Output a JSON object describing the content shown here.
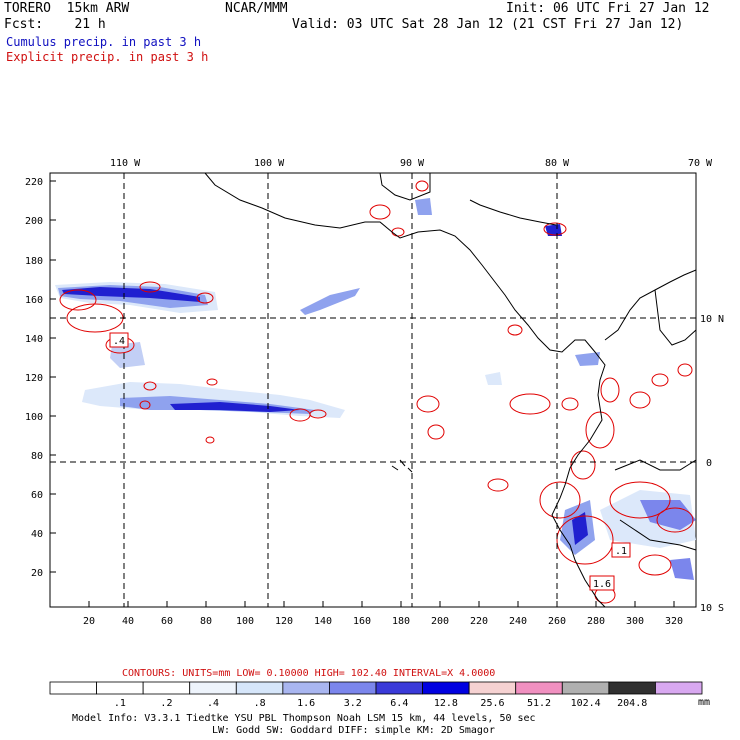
{
  "header": {
    "model": "TORERO  15km ARW",
    "org": "NCAR/MMM",
    "init": "Init: 06 UTC Fri 27 Jan 12",
    "fcst": "Fcst:    21 h",
    "valid": "Valid: 03 UTC Sat 28 Jan 12 (21 CST Fri 27 Jan 12)",
    "field1": "Cumulus precip. in past 3 h",
    "field2": "Explicit precip. in past 3 h"
  },
  "colors": {
    "cumulus_title": "#1010c0",
    "explicit_title": "#d01010",
    "contour": "#e00000",
    "shade_light": "#dce8fa",
    "shade_mid": "#8fa2ee",
    "shade_dark": "#2020d0",
    "grid": "#000000"
  },
  "axes": {
    "lon_labels": [
      "110 W",
      "100 W",
      "90 W",
      "80 W",
      "70 W"
    ],
    "lat_labels": [
      "10 N",
      "0",
      "10 S"
    ],
    "x_ticks": [
      "20",
      "40",
      "60",
      "80",
      "100",
      "120",
      "140",
      "160",
      "180",
      "200",
      "220",
      "240",
      "260",
      "280",
      "300",
      "320"
    ],
    "y_ticks": [
      "20",
      "40",
      "60",
      "80",
      "100",
      "120",
      "140",
      "160",
      "180",
      "200",
      "220"
    ]
  },
  "map_labels": {
    "box1": ".4",
    "box2": ".1",
    "box3": "1.6"
  },
  "contour_info": {
    "label": "CONTOURS:  UNITS=mm  LOW= 0.10000       HIGH=  102.40       INTERVAL=X  4.0000"
  },
  "colorbar": {
    "colors": [
      "#ffffff",
      "#ffffff",
      "#ffffff",
      "#eef4fc",
      "#d6e6fa",
      "#a9b6f0",
      "#7b86ec",
      "#3a3ad8",
      "#0000e0",
      "#f6d2d2",
      "#f090c0",
      "#b0b0b0",
      "#303030",
      "#d8a8f0"
    ],
    "labels": [
      ".1",
      ".2",
      ".4",
      ".8",
      "1.6",
      "3.2",
      "6.4",
      "12.8",
      "25.6",
      "51.2",
      "102.4",
      "204.8"
    ],
    "unit": "mm"
  },
  "footer": {
    "line1": "Model Info: V3.3.1    Tiedtke YSU PBL  Thompson     Noah LSM  15 km,   44 levels,   50 sec",
    "line2": "LW: Godd SW: Goddard DIFF: simple KM: 2D Smagor"
  }
}
